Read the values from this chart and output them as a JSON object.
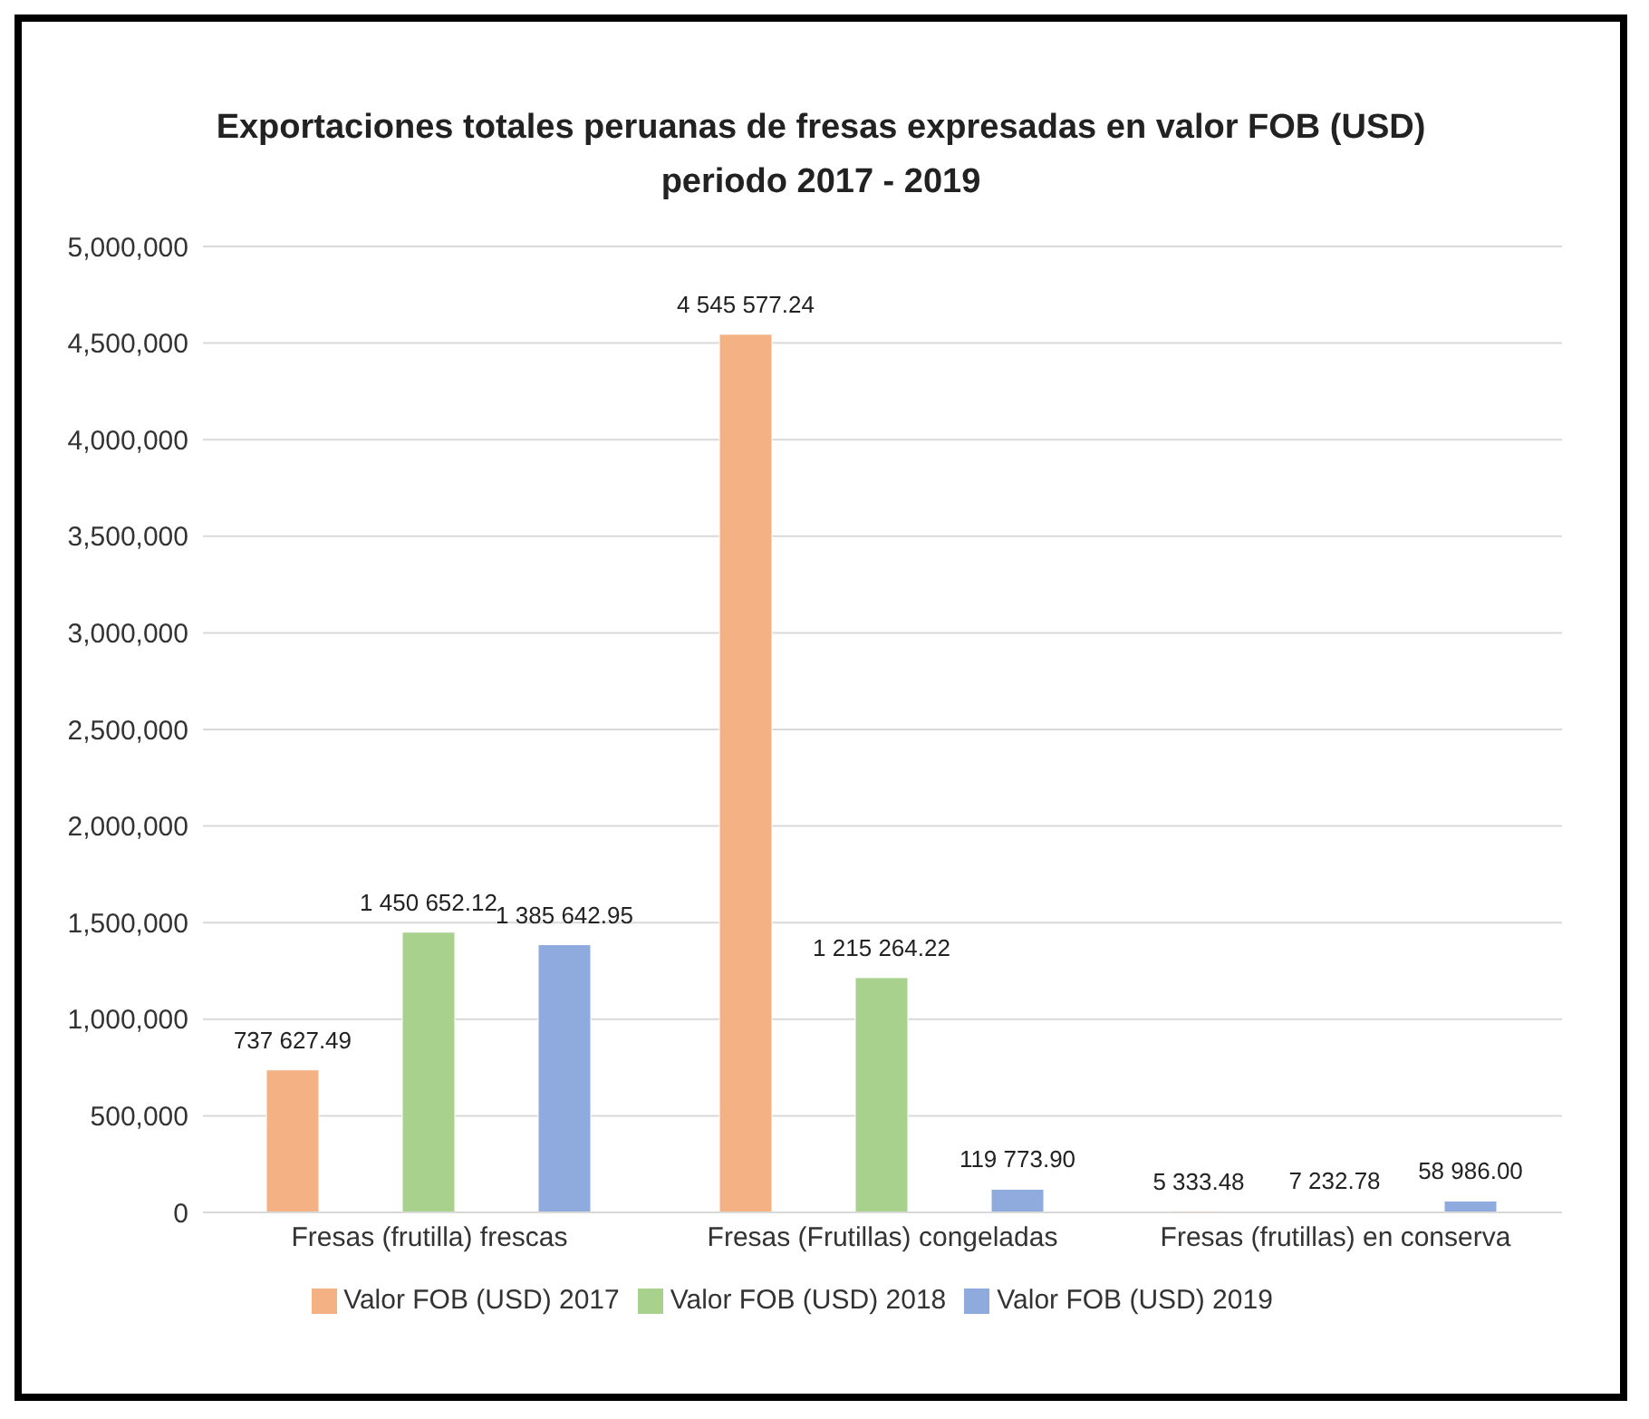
{
  "chart_data": {
    "type": "bar",
    "title": "Exportaciones totales peruanas de fresas expresadas en valor FOB (USD)\nperiodo 2017 - 2019",
    "categories": [
      "Fresas (frutilla) frescas",
      "Fresas (Frutillas) congeladas",
      "Fresas (frutillas) en conserva"
    ],
    "series": [
      {
        "name": "Valor FOB (USD) 2017",
        "color": "#f4b183",
        "values": [
          737627.49,
          4545577.24,
          5333.48
        ],
        "value_labels": [
          "737 627.49",
          "4 545 577.24",
          "5 333.48"
        ]
      },
      {
        "name": "Valor FOB (USD) 2018",
        "color": "#a9d18e",
        "values": [
          1450652.12,
          1215264.22,
          7232.78
        ],
        "value_labels": [
          "1 450 652.12",
          "1 215 264.22",
          "7 232.78"
        ]
      },
      {
        "name": "Valor FOB (USD) 2019",
        "color": "#8faadc",
        "values": [
          1385642.95,
          119773.9,
          58986
        ],
        "value_labels": [
          "1 385 642.95",
          "119 773.90",
          "58 986.00"
        ]
      }
    ],
    "ylim": [
      0,
      5000000
    ],
    "yticks": [
      {
        "value": 0,
        "label": "0"
      },
      {
        "value": 500000,
        "label": "500,000"
      },
      {
        "value": 1000000,
        "label": "1,000,000"
      },
      {
        "value": 1500000,
        "label": "1,500,000"
      },
      {
        "value": 2000000,
        "label": "2,000,000"
      },
      {
        "value": 2500000,
        "label": "2,500,000"
      },
      {
        "value": 3000000,
        "label": "3,000,000"
      },
      {
        "value": 3500000,
        "label": "3,500,000"
      },
      {
        "value": 4000000,
        "label": "4,000,000"
      },
      {
        "value": 4500000,
        "label": "4,500,000"
      },
      {
        "value": 5000000,
        "label": "5,000,000"
      }
    ],
    "grid": "y",
    "legend": "bottom"
  }
}
